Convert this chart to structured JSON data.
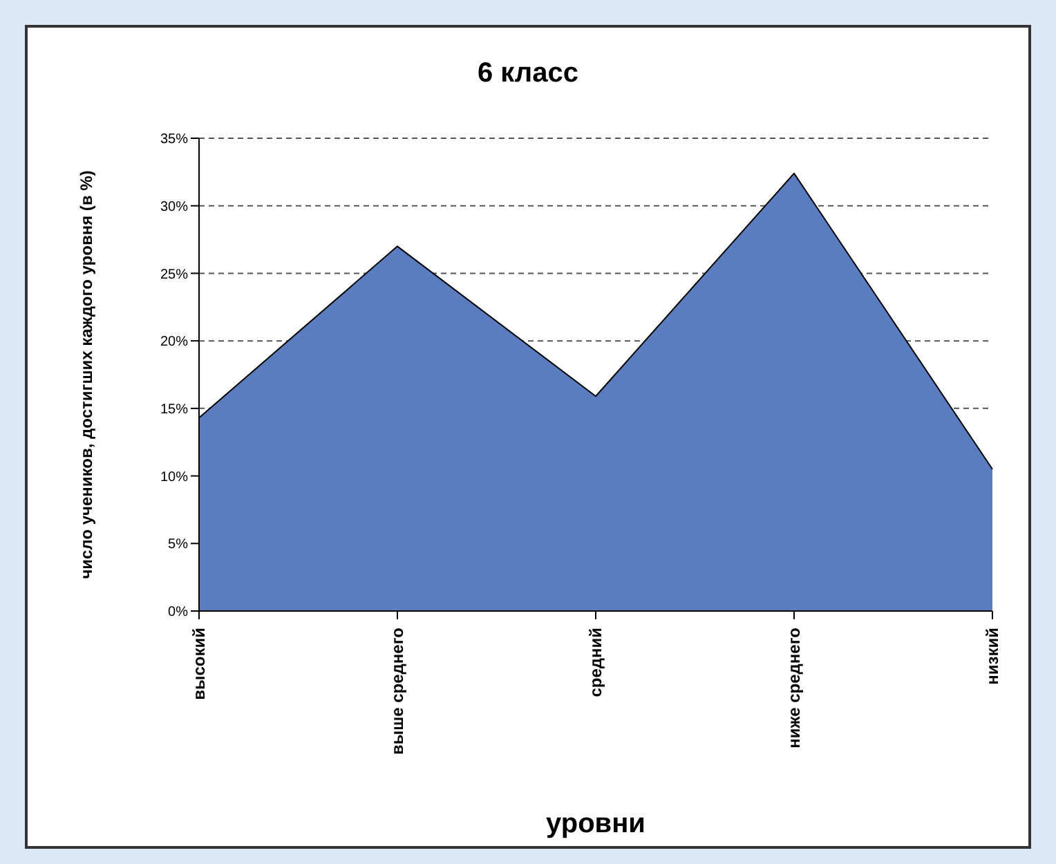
{
  "chart_data": {
    "type": "area",
    "title": "6 класс",
    "xlabel": "уровни",
    "ylabel": "число учеников, достигших каждого уровня (в %)",
    "categories": [
      "высокий",
      "выше среднего",
      "средний",
      "ниже среднего",
      "низкий"
    ],
    "series": [
      {
        "color": "#5b7dbf",
        "values": [
          14.3,
          27,
          15.9,
          32.4,
          10.5
        ]
      }
    ],
    "ylim": [
      0,
      35
    ],
    "yticks": [
      {
        "value": 0,
        "label": "0%"
      },
      {
        "value": 5,
        "label": "5%"
      },
      {
        "value": 10,
        "label": "10%"
      },
      {
        "value": 15,
        "label": "15%"
      },
      {
        "value": 20,
        "label": "20%"
      },
      {
        "value": 25,
        "label": "25%"
      },
      {
        "value": 30,
        "label": "30%"
      },
      {
        "value": 35,
        "label": "35%"
      }
    ],
    "grid": "y"
  }
}
